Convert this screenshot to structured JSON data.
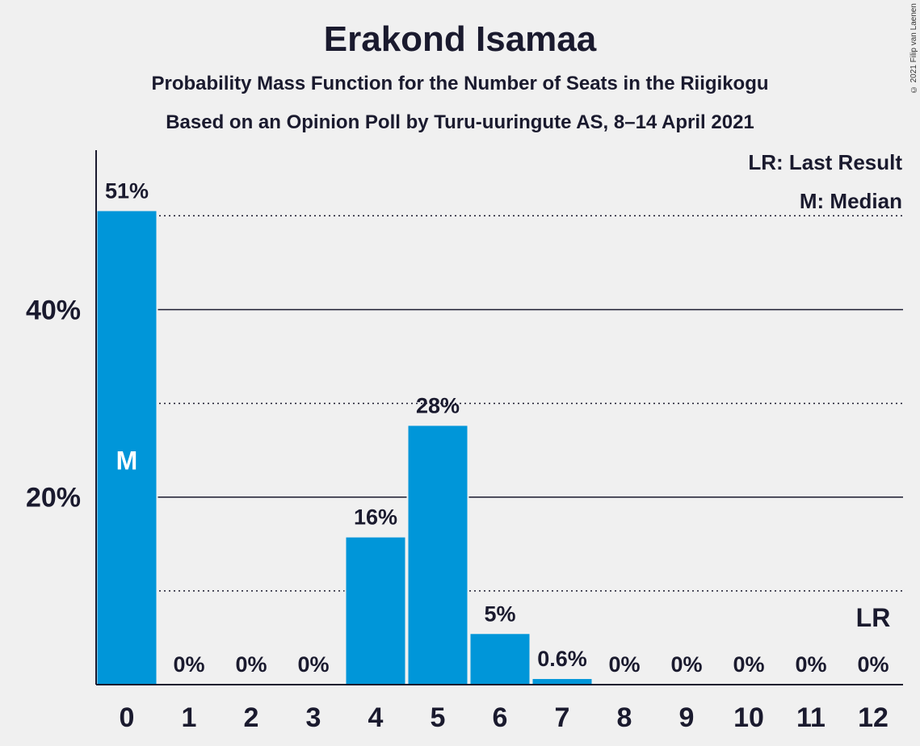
{
  "chart_data": {
    "type": "bar",
    "title": "Erakond Isamaa",
    "subtitle": "Probability Mass Function for the Number of Seats in the Riigikogu",
    "subtitle2": "Based on an Opinion Poll by Turu-uuringute AS, 8–14 April 2021",
    "copyright": "© 2021 Filip van Laenen",
    "categories": [
      "0",
      "1",
      "2",
      "3",
      "4",
      "5",
      "6",
      "7",
      "8",
      "9",
      "10",
      "11",
      "12"
    ],
    "values": [
      50.5,
      0,
      0,
      0,
      15.7,
      27.6,
      5.4,
      0.6,
      0,
      0,
      0,
      0,
      0
    ],
    "data_labels": [
      "51%",
      "0%",
      "0%",
      "0%",
      "16%",
      "28%",
      "5%",
      "0.6%",
      "0%",
      "0%",
      "0%",
      "0%",
      "0%"
    ],
    "ylim": [
      0,
      57
    ],
    "yticks": [
      {
        "value": 20,
        "label": "20%"
      },
      {
        "value": 40,
        "label": "40%"
      }
    ],
    "minor_gridlines": [
      10,
      30,
      50
    ],
    "median": {
      "category": "0",
      "label": "M"
    },
    "last_result": {
      "category": "12",
      "label": "LR"
    },
    "legend": {
      "placement": "top-right",
      "entries": [
        "LR: Last Result",
        "M: Median"
      ]
    },
    "colors": {
      "bar": "#0096d9",
      "background": "#f0f0f0",
      "text": "#1a1a2e"
    }
  }
}
